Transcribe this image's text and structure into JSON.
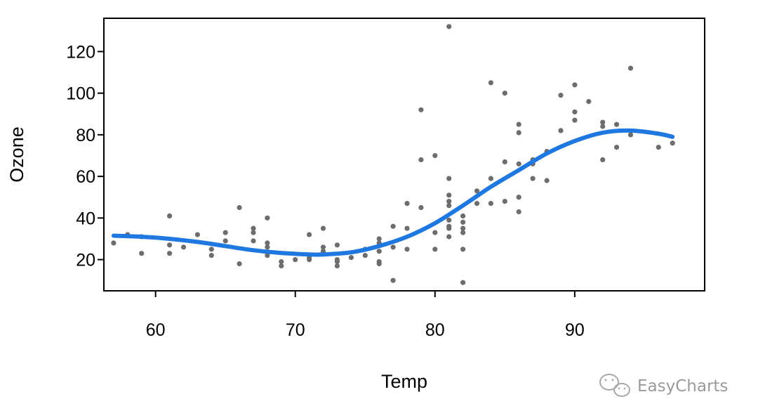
{
  "chart_data": {
    "type": "scatter",
    "title": "",
    "xlabel": "Temp",
    "ylabel": "Ozone",
    "xlim": [
      56.3,
      99.3
    ],
    "ylim": [
      5,
      136
    ],
    "x_ticks": [
      60,
      70,
      80,
      90
    ],
    "y_ticks": [
      20,
      40,
      60,
      80,
      100,
      120
    ],
    "grid": false,
    "legend": "none",
    "point_color": "#6d6d6d",
    "line_color": "#1f77e0",
    "points": [
      [
        57,
        28
      ],
      [
        58,
        32
      ],
      [
        59,
        23
      ],
      [
        59,
        31
      ],
      [
        61,
        41
      ],
      [
        61,
        27
      ],
      [
        61,
        23
      ],
      [
        62,
        26
      ],
      [
        63,
        32
      ],
      [
        64,
        22
      ],
      [
        64,
        25
      ],
      [
        65,
        29
      ],
      [
        65,
        33
      ],
      [
        66,
        45
      ],
      [
        66,
        18
      ],
      [
        67,
        35
      ],
      [
        67,
        33
      ],
      [
        67,
        29
      ],
      [
        68,
        40
      ],
      [
        68,
        28
      ],
      [
        68,
        26
      ],
      [
        68,
        22
      ],
      [
        69,
        19
      ],
      [
        69,
        17
      ],
      [
        70,
        20
      ],
      [
        71,
        32
      ],
      [
        71,
        21
      ],
      [
        71,
        20
      ],
      [
        72,
        35
      ],
      [
        72,
        26
      ],
      [
        72,
        24
      ],
      [
        73,
        27
      ],
      [
        73,
        19
      ],
      [
        73,
        17
      ],
      [
        73,
        20
      ],
      [
        74,
        21
      ],
      [
        75,
        22
      ],
      [
        75,
        25
      ],
      [
        76,
        30
      ],
      [
        76,
        24
      ],
      [
        76,
        18
      ],
      [
        76,
        19
      ],
      [
        76,
        28
      ],
      [
        77,
        36
      ],
      [
        77,
        26
      ],
      [
        77,
        10
      ],
      [
        78,
        47
      ],
      [
        78,
        35
      ],
      [
        78,
        25
      ],
      [
        79,
        92
      ],
      [
        79,
        68
      ],
      [
        79,
        45
      ],
      [
        80,
        70
      ],
      [
        80,
        33
      ],
      [
        80,
        25
      ],
      [
        81,
        132
      ],
      [
        81,
        59
      ],
      [
        81,
        51
      ],
      [
        81,
        48
      ],
      [
        81,
        46
      ],
      [
        81,
        39
      ],
      [
        81,
        36
      ],
      [
        81,
        35
      ],
      [
        81,
        31
      ],
      [
        82,
        41
      ],
      [
        82,
        38
      ],
      [
        82,
        35
      ],
      [
        82,
        33
      ],
      [
        82,
        25
      ],
      [
        82,
        9
      ],
      [
        83,
        53
      ],
      [
        83,
        47
      ],
      [
        84,
        105
      ],
      [
        84,
        59
      ],
      [
        84,
        47
      ],
      [
        85,
        100
      ],
      [
        85,
        67
      ],
      [
        85,
        48
      ],
      [
        86,
        85
      ],
      [
        86,
        81
      ],
      [
        86,
        66
      ],
      [
        86,
        50
      ],
      [
        86,
        43
      ],
      [
        87,
        68
      ],
      [
        87,
        66
      ],
      [
        87,
        59
      ],
      [
        88,
        72
      ],
      [
        88,
        58
      ],
      [
        89,
        99
      ],
      [
        89,
        82
      ],
      [
        90,
        104
      ],
      [
        90,
        91
      ],
      [
        90,
        87
      ],
      [
        91,
        96
      ],
      [
        92,
        86
      ],
      [
        92,
        84
      ],
      [
        92,
        68
      ],
      [
        93,
        85
      ],
      [
        93,
        74
      ],
      [
        94,
        112
      ],
      [
        94,
        80
      ],
      [
        96,
        74
      ],
      [
        97,
        76
      ]
    ],
    "smooth_curve": [
      [
        57,
        31.5
      ],
      [
        59,
        31
      ],
      [
        61,
        30
      ],
      [
        63,
        28.5
      ],
      [
        65,
        26.5
      ],
      [
        67,
        24.5
      ],
      [
        69,
        23.2
      ],
      [
        71,
        22.5
      ],
      [
        72,
        22.5
      ],
      [
        74,
        23.5
      ],
      [
        76,
        26.5
      ],
      [
        78,
        31
      ],
      [
        80,
        37.5
      ],
      [
        82,
        46
      ],
      [
        84,
        55
      ],
      [
        86,
        63
      ],
      [
        88,
        71
      ],
      [
        90,
        77
      ],
      [
        92,
        81
      ],
      [
        94,
        82
      ],
      [
        96,
        80.5
      ],
      [
        97,
        79
      ]
    ]
  },
  "watermark": {
    "text": "EasyCharts",
    "icon": "wechat-icon"
  }
}
